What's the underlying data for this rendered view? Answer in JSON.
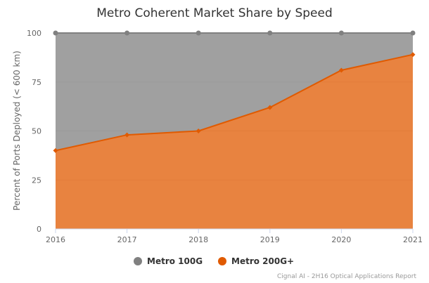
{
  "chart_data": {
    "type": "area",
    "stacking": "percent",
    "title": "Metro Coherent Market Share by Speed",
    "xlabel": "",
    "ylabel": "Percent of Ports Deployed (< 600 km)",
    "x": [
      "2016",
      "2017",
      "2018",
      "2019",
      "2020",
      "2021"
    ],
    "ylim": [
      0,
      100
    ],
    "yticks": [
      "0",
      "25",
      "50",
      "75",
      "100"
    ],
    "grid": true,
    "legend_position": "bottom",
    "series": [
      {
        "name": "Metro 100G",
        "color": "#808080",
        "marker": "circle",
        "values": [
          60,
          52,
          50,
          38,
          19,
          11
        ]
      },
      {
        "name": "Metro 200G+",
        "color": "#e05a00",
        "marker": "diamond",
        "values": [
          40,
          48,
          50,
          62,
          81,
          89
        ]
      }
    ],
    "credit": "Cignal AI - 2H16 Optical Applications Report"
  }
}
